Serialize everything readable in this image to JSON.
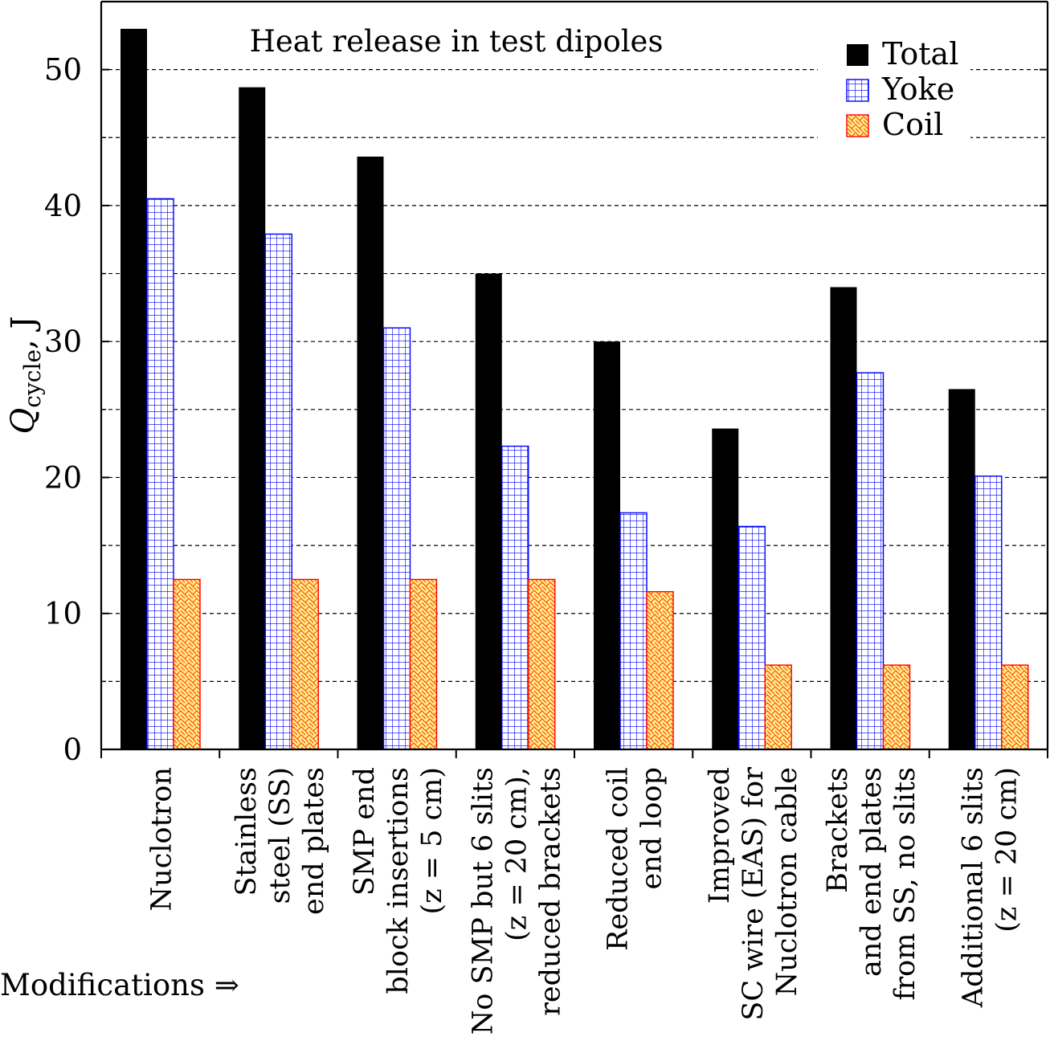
{
  "chart_data": {
    "type": "bar",
    "title": "Heat release in test dipoles",
    "ylabel_main": "Q",
    "ylabel_sub": "cycle",
    "ylabel_unit": ", J",
    "xlabel": "Modifications ⇒",
    "ylim": [
      0,
      55
    ],
    "yticks": [
      0,
      10,
      20,
      30,
      40,
      50
    ],
    "grid": "dashed horizontal every 5",
    "legend_position": "top-right",
    "categories": [
      [
        "Nuclotron"
      ],
      [
        "Stainless",
        "steel (SS)",
        "end plates"
      ],
      [
        "SMP end",
        "block insertions",
        "(z = 5 cm)"
      ],
      [
        "No SMP but 6 slits",
        "(z = 20 cm),",
        "reduced brackets"
      ],
      [
        "Reduced coil",
        "end loop"
      ],
      [
        "Improved",
        "SC wire (EAS) for",
        "Nuclotron cable"
      ],
      [
        "Brackets",
        "and end plates",
        "from SS, no slits"
      ],
      [
        "Additional 6 slits",
        "(z = 20 cm)"
      ]
    ],
    "series": [
      {
        "name": "Total",
        "color": "#000000",
        "pattern": "solid",
        "values": [
          53.0,
          48.7,
          43.6,
          35.0,
          30.0,
          23.6,
          34.0,
          26.5
        ]
      },
      {
        "name": "Yoke",
        "color": "#0000ff",
        "pattern": "grid",
        "values": [
          40.5,
          37.9,
          31.0,
          22.3,
          17.4,
          16.4,
          27.7,
          20.1
        ]
      },
      {
        "name": "Coil",
        "color": "#ff0000",
        "fill": "#ffee88",
        "pattern": "crosshatch",
        "values": [
          12.5,
          12.5,
          12.5,
          12.5,
          11.6,
          6.2,
          6.2,
          6.2
        ]
      }
    ]
  }
}
